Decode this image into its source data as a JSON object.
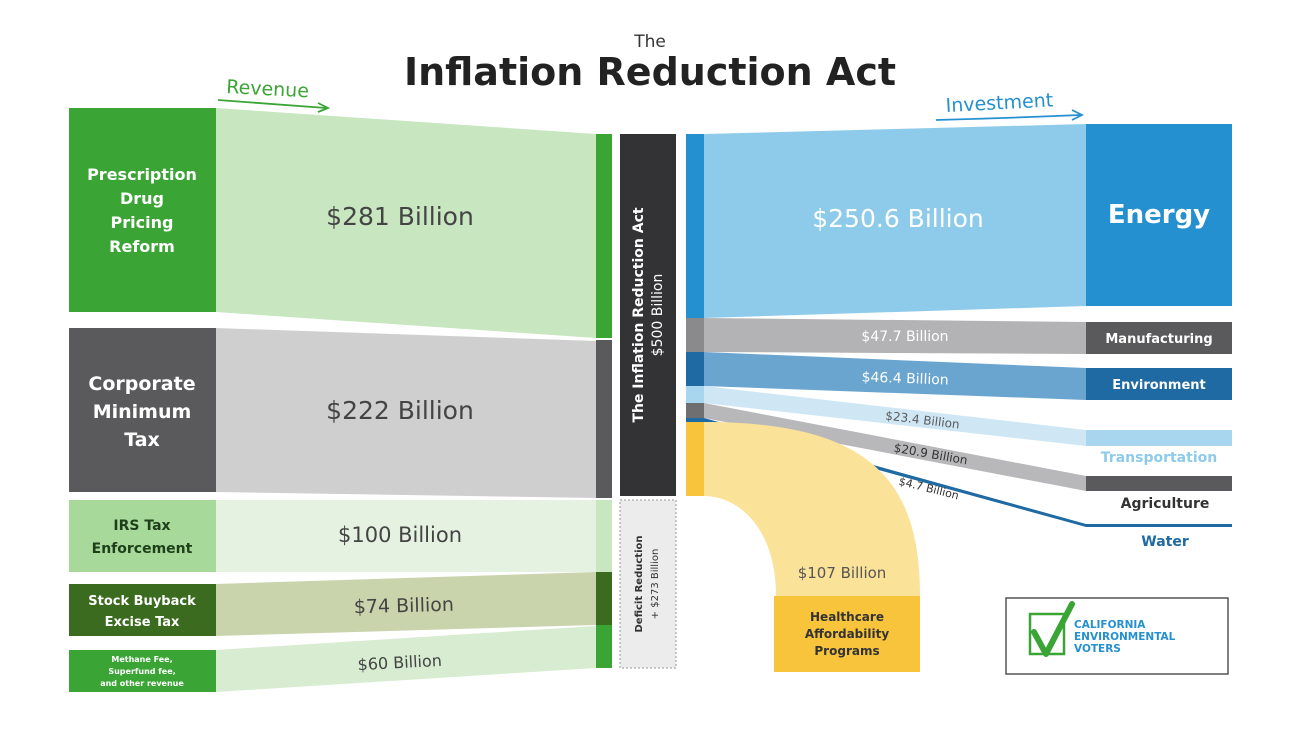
{
  "title": {
    "small": "The",
    "main": "Inflation Reduction Act"
  },
  "revenue_label": "Revenue",
  "investment_label": "Investment",
  "center": {
    "name": "The Inflation Reduction Act",
    "amount": "$500 Billion"
  },
  "deficit": {
    "name": "Deficit Reduction",
    "amount": "+ $273 Billion"
  },
  "revenue": [
    {
      "lines": [
        "Prescription",
        "Drug",
        "Pricing",
        "Reform"
      ],
      "amount": "$281 Billion"
    },
    {
      "lines": [
        "Corporate",
        "Minimum",
        "Tax"
      ],
      "amount": "$222 Billion"
    },
    {
      "lines": [
        "IRS Tax",
        "Enforcement"
      ],
      "amount": "$100 Billion"
    },
    {
      "lines": [
        "Stock Buyback",
        "Excise Tax"
      ],
      "amount": "$74 Billion"
    },
    {
      "lines": [
        "Methane Fee,",
        "Superfund fee,",
        "and other revenue"
      ],
      "amount": "$60 Billion"
    }
  ],
  "investment": [
    {
      "name": "Energy",
      "amount": "$250.6 Billion"
    },
    {
      "name": "Manufacturing",
      "amount": "$47.7 Billion"
    },
    {
      "name": "Environment",
      "amount": "$46.4 Billion"
    },
    {
      "name": "Transportation",
      "amount": "$23.4 Billion"
    },
    {
      "name": "Agriculture",
      "amount": "$20.9 Billion"
    },
    {
      "name": "Water",
      "amount": "$4.7 Billion"
    }
  ],
  "healthcare": {
    "lines": [
      "Healthcare",
      "Affordability",
      "Programs"
    ],
    "amount": "$107 Billion"
  },
  "logo": {
    "lines": [
      "CALIFORNIA",
      "ENVIRONMENTAL",
      "VOTERS"
    ]
  },
  "colors": {
    "green_dark": "#3aa535",
    "green_light": "#c8e6c0",
    "gray_dark": "#5a5a5c",
    "gray_light": "#cfcfcf",
    "olive_dark": "#3b6b1f",
    "blue_energy": "#2590d0",
    "blue_light": "#8ecbea",
    "blue_env": "#1f6aa2",
    "yellow": "#f8c43c",
    "yellow_light": "#fbe299"
  }
}
